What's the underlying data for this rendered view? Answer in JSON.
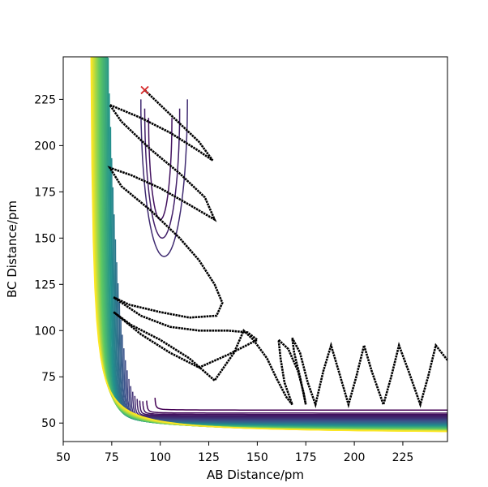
{
  "chart_data": {
    "type": "contour",
    "xlabel": "AB Distance/pm",
    "ylabel": "BC Distance/pm",
    "xlim": [
      50,
      248
    ],
    "ylim": [
      40,
      248
    ],
    "xticks": [
      "50",
      "75",
      "100",
      "125",
      "150",
      "175",
      "200",
      "225"
    ],
    "yticks": [
      "50",
      "75",
      "100",
      "125",
      "150",
      "175",
      "200",
      "225"
    ],
    "grid": false,
    "legend": "none",
    "colormap": [
      "#440154",
      "#3b528b",
      "#21918c",
      "#5ec962",
      "#fde725"
    ],
    "start_marker": {
      "x": 92,
      "y": 230,
      "symbol": "x",
      "color": "#d62728"
    },
    "trajectory_color": "#000000",
    "trajectory": [
      [
        92,
        230
      ],
      [
        100,
        222
      ],
      [
        110,
        212
      ],
      [
        120,
        202
      ],
      [
        127,
        192
      ],
      [
        120,
        197
      ],
      [
        105,
        207
      ],
      [
        90,
        215
      ],
      [
        74,
        222
      ],
      [
        80,
        213
      ],
      [
        95,
        198
      ],
      [
        110,
        185
      ],
      [
        123,
        172
      ],
      [
        128,
        160
      ],
      [
        115,
        168
      ],
      [
        100,
        177
      ],
      [
        85,
        184
      ],
      [
        74,
        188
      ],
      [
        80,
        178
      ],
      [
        95,
        165
      ],
      [
        110,
        150
      ],
      [
        120,
        138
      ],
      [
        128,
        125
      ],
      [
        132,
        115
      ],
      [
        129,
        108
      ],
      [
        115,
        107
      ],
      [
        100,
        110
      ],
      [
        84,
        114
      ],
      [
        76,
        118
      ],
      [
        90,
        108
      ],
      [
        105,
        102
      ],
      [
        120,
        100
      ],
      [
        135,
        100
      ],
      [
        145,
        99
      ],
      [
        150,
        95
      ],
      [
        135,
        87
      ],
      [
        120,
        80
      ],
      [
        105,
        88
      ],
      [
        90,
        98
      ],
      [
        76,
        110
      ],
      [
        85,
        103
      ],
      [
        100,
        95
      ],
      [
        115,
        85
      ],
      [
        128,
        73
      ],
      [
        138,
        88
      ],
      [
        143,
        100
      ],
      [
        148,
        95
      ],
      [
        155,
        85
      ],
      [
        160,
        74
      ],
      [
        165,
        64
      ],
      [
        168,
        60
      ],
      [
        164,
        72
      ],
      [
        162,
        85
      ],
      [
        161,
        95
      ],
      [
        166,
        90
      ],
      [
        171,
        78
      ],
      [
        174,
        66
      ],
      [
        175,
        60
      ],
      [
        172,
        75
      ],
      [
        169,
        88
      ],
      [
        168,
        96
      ],
      [
        172,
        88
      ],
      [
        176,
        72
      ],
      [
        180,
        60
      ],
      [
        184,
        78
      ],
      [
        188,
        92
      ],
      [
        192,
        78
      ],
      [
        197,
        60
      ],
      [
        201,
        75
      ],
      [
        205,
        92
      ],
      [
        209,
        78
      ],
      [
        215,
        60
      ],
      [
        219,
        75
      ],
      [
        223,
        92
      ],
      [
        228,
        78
      ],
      [
        234,
        60
      ],
      [
        238,
        75
      ],
      [
        242,
        92
      ],
      [
        248,
        84
      ]
    ]
  }
}
